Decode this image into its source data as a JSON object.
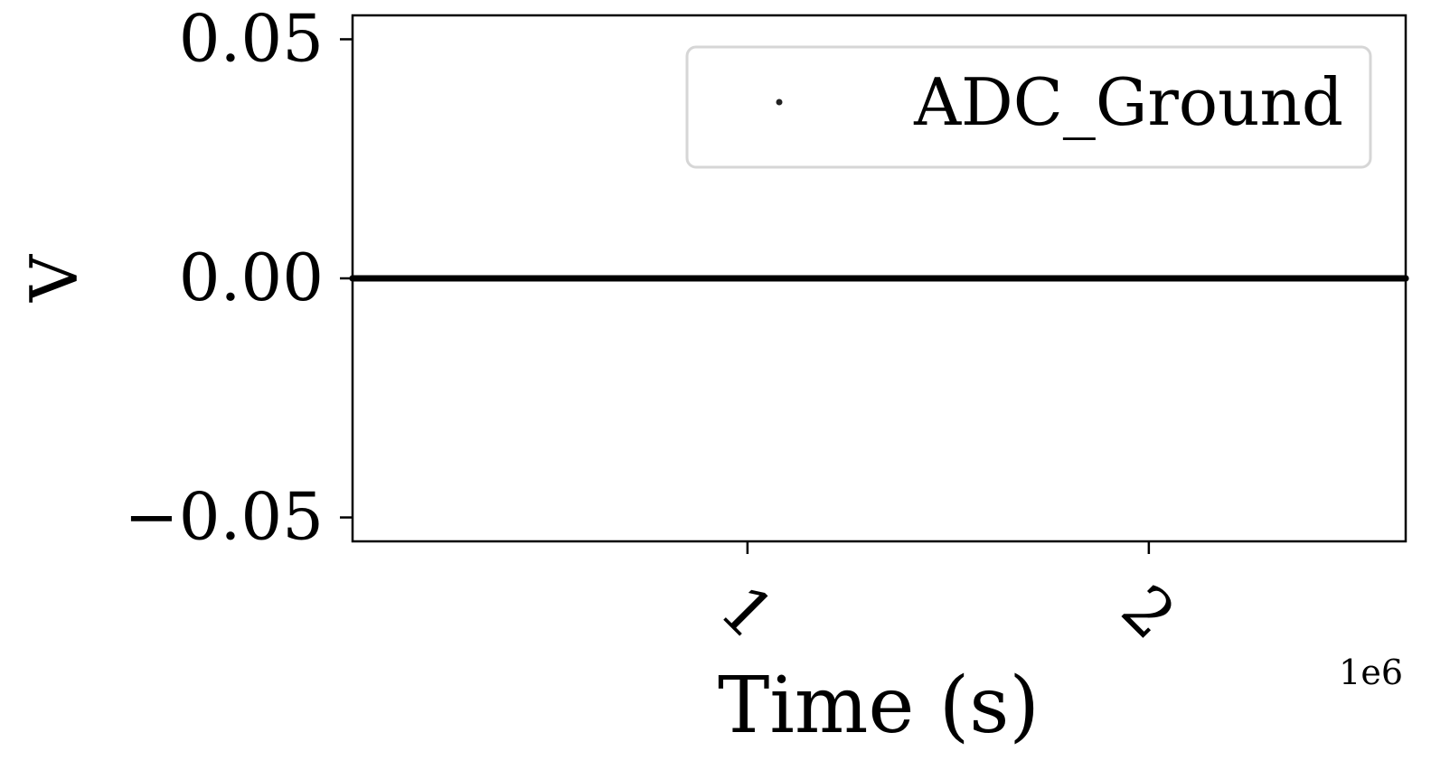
{
  "chart_data": {
    "type": "line",
    "title": "",
    "xlabel": "Time (s)",
    "ylabel": "V",
    "x_offset_label": "1e6",
    "xlim": [
      0.016,
      2.64
    ],
    "ylim": [
      -0.055,
      0.055
    ],
    "xticks": [
      1,
      2
    ],
    "xtick_labels": [
      "1",
      "2"
    ],
    "yticks": [
      0.05,
      0.0,
      -0.05
    ],
    "ytick_labels": [
      "0.05",
      "0.00",
      "−0.05"
    ],
    "grid": false,
    "legend_position": "top-right",
    "series": [
      {
        "name": "ADC_Ground",
        "marker": "point",
        "color": "#000000",
        "x": [
          0.016,
          0.25,
          0.5,
          0.75,
          1.0,
          1.25,
          1.5,
          1.75,
          2.0,
          2.25,
          2.5,
          2.64
        ],
        "values": [
          0,
          0,
          0,
          0,
          0,
          0,
          0,
          0,
          0,
          0,
          0,
          0
        ]
      }
    ]
  }
}
